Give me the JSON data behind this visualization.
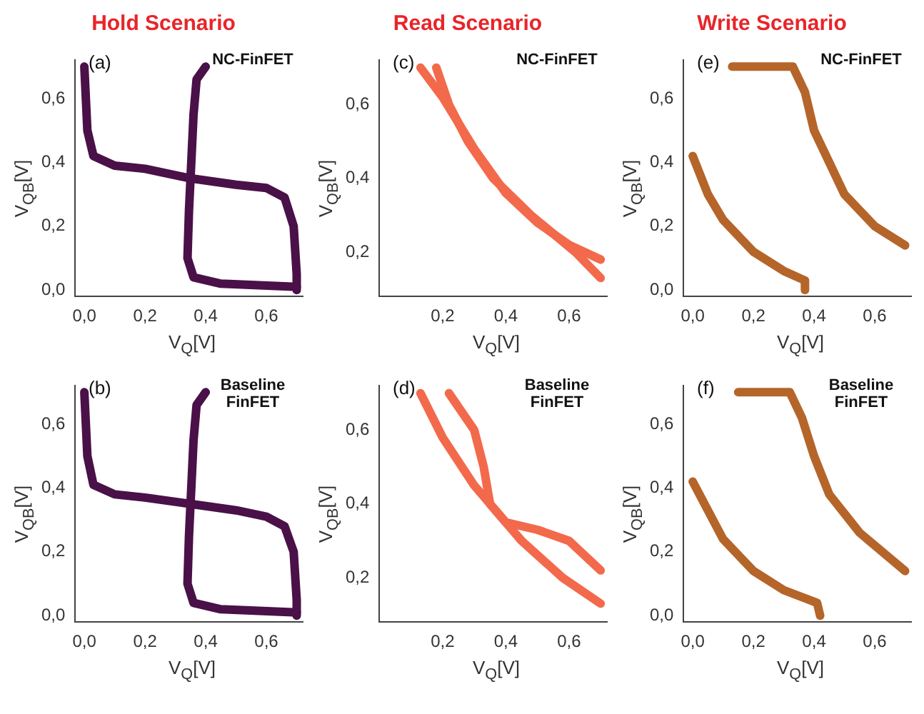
{
  "chart_data": [
    {
      "type": "line",
      "title": "Hold Scenario",
      "xlabel": "V$_{Q}$[V]",
      "ylabel": "V$_{QB}$[V]",
      "xlim": [
        -0.03,
        0.72
      ],
      "ylim": [
        -0.02,
        0.72
      ],
      "xticks": [
        {
          "value": 0,
          "label": "0,0"
        },
        {
          "value": 0.2,
          "label": "0,2"
        },
        {
          "value": 0.4,
          "label": "0,4"
        },
        {
          "value": 0.6,
          "label": "0,6"
        }
      ],
      "yticks": [
        {
          "value": 0,
          "label": "0,0"
        },
        {
          "value": 0.2,
          "label": "0,2"
        },
        {
          "value": 0.4,
          "label": "0,4"
        },
        {
          "value": 0.6,
          "label": "0,6"
        }
      ],
      "marker": "none",
      "annotations": [
        "(a)",
        "NC-FinFET"
      ],
      "series": [
        {
          "color": "#4a1048",
          "x": [
            0.0,
            0.01,
            0.03,
            0.1,
            0.2,
            0.35,
            0.5,
            0.6,
            0.66,
            0.69,
            0.7,
            0.7
          ],
          "values": [
            0.7,
            0.5,
            0.42,
            0.39,
            0.38,
            0.35,
            0.33,
            0.32,
            0.29,
            0.2,
            0.05,
            0.0
          ]
        },
        {
          "color": "#4a1048",
          "x": [
            0.4,
            0.37,
            0.36,
            0.355,
            0.35,
            0.345,
            0.34,
            0.36,
            0.45,
            0.7
          ],
          "values": [
            0.7,
            0.66,
            0.55,
            0.45,
            0.35,
            0.25,
            0.1,
            0.04,
            0.02,
            0.01
          ]
        }
      ]
    },
    {
      "type": "line",
      "title": "Read Scenario",
      "xlabel": "V$_{Q}$[V]",
      "ylabel": "V$_{QB}$[V]",
      "xlim": [
        0.0,
        0.72
      ],
      "ylim": [
        0.08,
        0.72
      ],
      "xticks": [
        {
          "value": 0.2,
          "label": "0,2"
        },
        {
          "value": 0.4,
          "label": "0,4"
        },
        {
          "value": 0.6,
          "label": "0,6"
        }
      ],
      "yticks": [
        {
          "value": 0.2,
          "label": "0,2"
        },
        {
          "value": 0.4,
          "label": "0,4"
        },
        {
          "value": 0.6,
          "label": "0,6"
        }
      ],
      "marker": "none",
      "annotations": [
        "(c)",
        "NC-FinFET"
      ],
      "series": [
        {
          "color": "#f26a4b",
          "x": [
            0.13,
            0.2,
            0.3,
            0.4,
            0.5,
            0.6,
            0.7
          ],
          "values": [
            0.7,
            0.62,
            0.48,
            0.36,
            0.28,
            0.22,
            0.18
          ]
        },
        {
          "color": "#f26a4b",
          "x": [
            0.18,
            0.22,
            0.28,
            0.36,
            0.48,
            0.62,
            0.7
          ],
          "values": [
            0.7,
            0.6,
            0.5,
            0.4,
            0.3,
            0.2,
            0.13
          ]
        }
      ]
    },
    {
      "type": "line",
      "title": "Write Scenario",
      "xlabel": "V$_{Q}$[V]",
      "ylabel": "V$_{QB}$[V]",
      "xlim": [
        -0.03,
        0.72
      ],
      "ylim": [
        -0.02,
        0.72
      ],
      "xticks": [
        {
          "value": 0,
          "label": "0,0"
        },
        {
          "value": 0.2,
          "label": "0,2"
        },
        {
          "value": 0.4,
          "label": "0,4"
        },
        {
          "value": 0.6,
          "label": "0,6"
        }
      ],
      "yticks": [
        {
          "value": 0,
          "label": "0,0"
        },
        {
          "value": 0.2,
          "label": "0,2"
        },
        {
          "value": 0.4,
          "label": "0,4"
        },
        {
          "value": 0.6,
          "label": "0,6"
        }
      ],
      "marker": "none",
      "annotations": [
        "(e)",
        "NC-FinFET"
      ],
      "series": [
        {
          "color": "#b5652a",
          "x": [
            0.0,
            0.05,
            0.1,
            0.2,
            0.3,
            0.37,
            0.37
          ],
          "values": [
            0.42,
            0.3,
            0.22,
            0.12,
            0.06,
            0.03,
            0.0
          ]
        },
        {
          "color": "#b5652a",
          "x": [
            0.13,
            0.33,
            0.37,
            0.4,
            0.45,
            0.5,
            0.6,
            0.7
          ],
          "values": [
            0.7,
            0.7,
            0.62,
            0.5,
            0.4,
            0.3,
            0.2,
            0.14
          ]
        }
      ]
    },
    {
      "type": "line",
      "xlabel": "V$_{Q}$[V]",
      "ylabel": "V$_{QB}$[V]",
      "xlim": [
        -0.03,
        0.72
      ],
      "ylim": [
        -0.02,
        0.72
      ],
      "xticks": [
        {
          "value": 0,
          "label": "0,0"
        },
        {
          "value": 0.2,
          "label": "0,2"
        },
        {
          "value": 0.4,
          "label": "0,4"
        },
        {
          "value": 0.6,
          "label": "0,6"
        }
      ],
      "yticks": [
        {
          "value": 0,
          "label": "0,0"
        },
        {
          "value": 0.2,
          "label": "0,2"
        },
        {
          "value": 0.4,
          "label": "0,4"
        },
        {
          "value": 0.6,
          "label": "0,6"
        }
      ],
      "marker": "none",
      "annotations": [
        "(b)",
        "Baseline FinFET"
      ],
      "series": [
        {
          "color": "#4a1048",
          "x": [
            0.0,
            0.01,
            0.03,
            0.1,
            0.2,
            0.35,
            0.5,
            0.6,
            0.66,
            0.69,
            0.7,
            0.7
          ],
          "values": [
            0.7,
            0.5,
            0.41,
            0.38,
            0.37,
            0.35,
            0.33,
            0.31,
            0.28,
            0.2,
            0.05,
            0.0
          ]
        },
        {
          "color": "#4a1048",
          "x": [
            0.4,
            0.37,
            0.36,
            0.355,
            0.35,
            0.345,
            0.34,
            0.36,
            0.45,
            0.7
          ],
          "values": [
            0.7,
            0.66,
            0.55,
            0.45,
            0.35,
            0.25,
            0.1,
            0.04,
            0.02,
            0.01
          ]
        }
      ]
    },
    {
      "type": "line",
      "xlabel": "V$_{Q}$[V]",
      "ylabel": "V$_{QB}$[V]",
      "xlim": [
        0.0,
        0.72
      ],
      "ylim": [
        0.08,
        0.72
      ],
      "xticks": [
        {
          "value": 0.2,
          "label": "0,2"
        },
        {
          "value": 0.4,
          "label": "0,4"
        },
        {
          "value": 0.6,
          "label": "0,6"
        }
      ],
      "yticks": [
        {
          "value": 0.2,
          "label": "0,2"
        },
        {
          "value": 0.4,
          "label": "0,4"
        },
        {
          "value": 0.6,
          "label": "0,6"
        }
      ],
      "marker": "none",
      "annotations": [
        "(d)",
        "Baseline FinFET"
      ],
      "series": [
        {
          "color": "#f26a4b",
          "x": [
            0.13,
            0.2,
            0.3,
            0.4,
            0.5,
            0.6,
            0.7
          ],
          "values": [
            0.7,
            0.58,
            0.45,
            0.35,
            0.33,
            0.3,
            0.22
          ]
        },
        {
          "color": "#f26a4b",
          "x": [
            0.22,
            0.3,
            0.33,
            0.35,
            0.45,
            0.58,
            0.7
          ],
          "values": [
            0.7,
            0.6,
            0.5,
            0.4,
            0.3,
            0.2,
            0.13
          ]
        }
      ]
    },
    {
      "type": "line",
      "xlabel": "V$_{Q}$[V]",
      "ylabel": "V$_{QB}$[V]",
      "xlim": [
        -0.03,
        0.72
      ],
      "ylim": [
        -0.02,
        0.72
      ],
      "xticks": [
        {
          "value": 0,
          "label": "0,0"
        },
        {
          "value": 0.2,
          "label": "0,2"
        },
        {
          "value": 0.4,
          "label": "0,4"
        },
        {
          "value": 0.6,
          "label": "0,6"
        }
      ],
      "yticks": [
        {
          "value": 0,
          "label": "0,0"
        },
        {
          "value": 0.2,
          "label": "0,2"
        },
        {
          "value": 0.4,
          "label": "0,4"
        },
        {
          "value": 0.6,
          "label": "0,6"
        }
      ],
      "marker": "none",
      "annotations": [
        "(f)",
        "Baseline FinFET"
      ],
      "series": [
        {
          "color": "#b5652a",
          "x": [
            0.0,
            0.1,
            0.2,
            0.3,
            0.41,
            0.42
          ],
          "values": [
            0.42,
            0.24,
            0.14,
            0.08,
            0.04,
            0.0
          ]
        },
        {
          "color": "#b5652a",
          "x": [
            0.15,
            0.32,
            0.36,
            0.4,
            0.45,
            0.55,
            0.7
          ],
          "values": [
            0.7,
            0.7,
            0.62,
            0.5,
            0.38,
            0.26,
            0.14
          ]
        }
      ]
    }
  ]
}
